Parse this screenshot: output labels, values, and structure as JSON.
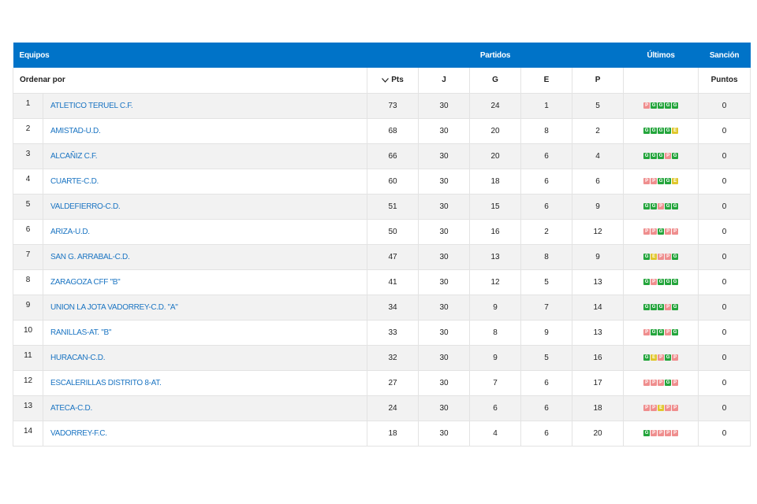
{
  "header": {
    "equipos": "Equipos",
    "partidos": "Partidos",
    "ultimos": "Últimos",
    "sancion": "Sanción"
  },
  "subheader": {
    "ordenar": "Ordenar por",
    "pts": "Pts",
    "j": "J",
    "g": "G",
    "e": "E",
    "p": "P",
    "puntos": "Puntos"
  },
  "colors": {
    "header_bg": "#0073c8",
    "win": "#24a53c",
    "draw": "#e0c72c",
    "loss": "#ef8e8e",
    "link": "#1a74c2"
  },
  "rows": [
    {
      "pos": "1",
      "team": "ATLETICO TERUEL C.F.",
      "pts": "73",
      "j": "30",
      "g": "24",
      "e": "1",
      "p": "5",
      "last": [
        "P",
        "G",
        "G",
        "G",
        "G"
      ],
      "sancion": "0"
    },
    {
      "pos": "2",
      "team": "AMISTAD-U.D.",
      "pts": "68",
      "j": "30",
      "g": "20",
      "e": "8",
      "p": "2",
      "last": [
        "G",
        "G",
        "G",
        "G",
        "E"
      ],
      "sancion": "0"
    },
    {
      "pos": "3",
      "team": "ALCAÑIZ C.F.",
      "pts": "66",
      "j": "30",
      "g": "20",
      "e": "6",
      "p": "4",
      "last": [
        "G",
        "G",
        "G",
        "P",
        "G"
      ],
      "sancion": "0"
    },
    {
      "pos": "4",
      "team": "CUARTE-C.D.",
      "pts": "60",
      "j": "30",
      "g": "18",
      "e": "6",
      "p": "6",
      "last": [
        "P",
        "P",
        "G",
        "G",
        "E"
      ],
      "sancion": "0"
    },
    {
      "pos": "5",
      "team": "VALDEFIERRO-C.D.",
      "pts": "51",
      "j": "30",
      "g": "15",
      "e": "6",
      "p": "9",
      "last": [
        "G",
        "G",
        "P",
        "G",
        "G"
      ],
      "sancion": "0"
    },
    {
      "pos": "6",
      "team": "ARIZA-U.D.",
      "pts": "50",
      "j": "30",
      "g": "16",
      "e": "2",
      "p": "12",
      "last": [
        "P",
        "P",
        "G",
        "P",
        "P"
      ],
      "sancion": "0"
    },
    {
      "pos": "7",
      "team": "SAN G. ARRABAL-C.D.",
      "pts": "47",
      "j": "30",
      "g": "13",
      "e": "8",
      "p": "9",
      "last": [
        "G",
        "E",
        "P",
        "P",
        "G"
      ],
      "sancion": "0"
    },
    {
      "pos": "8",
      "team": "ZARAGOZA CFF \"B\"",
      "pts": "41",
      "j": "30",
      "g": "12",
      "e": "5",
      "p": "13",
      "last": [
        "G",
        "P",
        "G",
        "G",
        "G"
      ],
      "sancion": "0"
    },
    {
      "pos": "9",
      "team": "UNION LA JOTA VADORREY-C.D. \"A\"",
      "pts": "34",
      "j": "30",
      "g": "9",
      "e": "7",
      "p": "14",
      "last": [
        "G",
        "G",
        "G",
        "P",
        "G"
      ],
      "sancion": "0"
    },
    {
      "pos": "10",
      "team": "RANILLAS-AT. \"B\"",
      "pts": "33",
      "j": "30",
      "g": "8",
      "e": "9",
      "p": "13",
      "last": [
        "P",
        "G",
        "G",
        "P",
        "G"
      ],
      "sancion": "0"
    },
    {
      "pos": "11",
      "team": "HURACAN-C.D.",
      "pts": "32",
      "j": "30",
      "g": "9",
      "e": "5",
      "p": "16",
      "last": [
        "G",
        "E",
        "P",
        "G",
        "P"
      ],
      "sancion": "0"
    },
    {
      "pos": "12",
      "team": "ESCALERILLAS DISTRITO 8-AT.",
      "pts": "27",
      "j": "30",
      "g": "7",
      "e": "6",
      "p": "17",
      "last": [
        "P",
        "P",
        "P",
        "G",
        "P"
      ],
      "sancion": "0"
    },
    {
      "pos": "13",
      "team": "ATECA-C.D.",
      "pts": "24",
      "j": "30",
      "g": "6",
      "e": "6",
      "p": "18",
      "last": [
        "P",
        "P",
        "E",
        "P",
        "P"
      ],
      "sancion": "0"
    },
    {
      "pos": "14",
      "team": "VADORREY-F.C.",
      "pts": "18",
      "j": "30",
      "g": "4",
      "e": "6",
      "p": "20",
      "last": [
        "G",
        "P",
        "P",
        "P",
        "P"
      ],
      "sancion": "0"
    }
  ]
}
